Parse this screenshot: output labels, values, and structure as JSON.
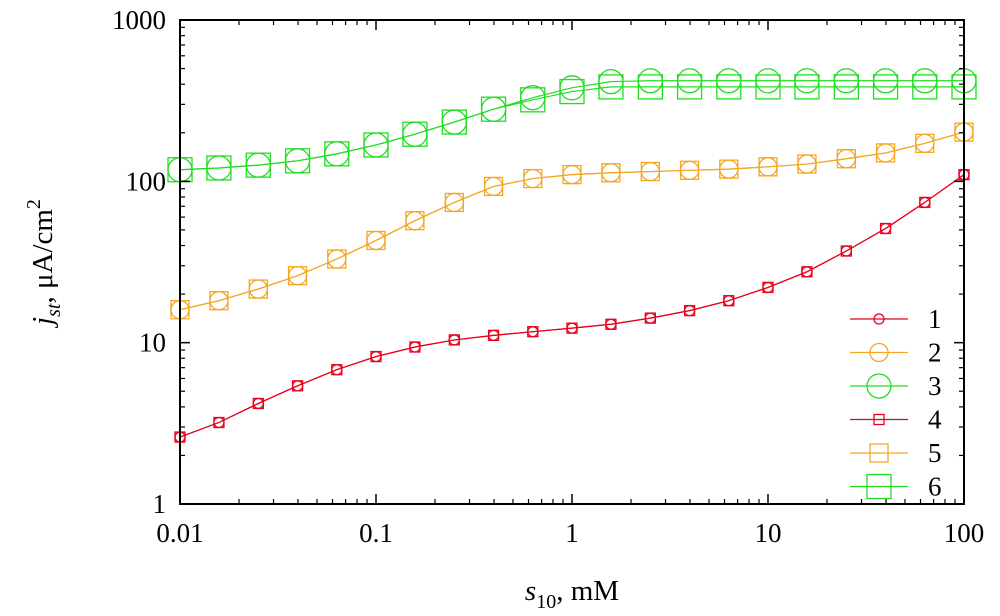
{
  "chart_data": {
    "type": "line",
    "title": "",
    "x_scale": "log",
    "y_scale": "log",
    "xlim": [
      0.01,
      100
    ],
    "ylim": [
      1,
      1000
    ],
    "xlabel": {
      "main": "s",
      "sub": "10",
      "rest": ", mM"
    },
    "ylabel": {
      "main": "j",
      "sub": "st",
      "rest": ", μA/cm",
      "sup": "2"
    },
    "x_ticks": [
      0.01,
      0.1,
      1,
      10,
      100
    ],
    "x_tick_labels": [
      "0.01",
      "0.1",
      "1",
      "10",
      "100"
    ],
    "y_ticks": [
      1,
      10,
      100,
      1000
    ],
    "y_tick_labels": [
      "1",
      "10",
      "100",
      "1000"
    ],
    "grid": false,
    "legend_position": "bottom-right",
    "colors": {
      "red": "#e8001c",
      "orange": "#f5a623",
      "green": "#22dd22"
    },
    "x": [
      0.01,
      0.0158,
      0.0251,
      0.0398,
      0.0631,
      0.1,
      0.158,
      0.251,
      0.398,
      0.631,
      1,
      1.58,
      2.51,
      3.98,
      6.31,
      10,
      15.8,
      25.1,
      39.8,
      63.1,
      100
    ],
    "series": [
      {
        "name": "1",
        "marker": "circle",
        "size": "small",
        "color": "#e8001c",
        "values": [
          2.6,
          3.2,
          4.2,
          5.4,
          6.8,
          8.2,
          9.4,
          10.4,
          11.1,
          11.7,
          12.3,
          13.0,
          14.2,
          15.8,
          18.2,
          22.0,
          27.5,
          37.0,
          51.0,
          74.0,
          110.0
        ]
      },
      {
        "name": "2",
        "marker": "circle",
        "size": "medium",
        "color": "#f5a623",
        "values": [
          16.0,
          18.2,
          21.5,
          26.0,
          33.0,
          43.0,
          57.0,
          74.0,
          93.0,
          104.0,
          110.0,
          113.0,
          115.0,
          117.0,
          119.0,
          123.0,
          128.0,
          138.0,
          150.0,
          172.0,
          202.0
        ]
      },
      {
        "name": "3",
        "marker": "circle",
        "size": "large",
        "color": "#22dd22",
        "values": [
          118.0,
          121.0,
          126.0,
          134.0,
          148.0,
          168.0,
          196.0,
          233.0,
          280.0,
          330.0,
          380.0,
          415.0,
          420.0,
          420.0,
          420.0,
          420.0,
          420.0,
          420.0,
          420.0,
          420.0,
          420.0
        ]
      },
      {
        "name": "4",
        "marker": "square",
        "size": "small",
        "color": "#e8001c",
        "values": [
          2.6,
          3.2,
          4.2,
          5.4,
          6.8,
          8.2,
          9.4,
          10.4,
          11.1,
          11.7,
          12.3,
          13.0,
          14.2,
          15.8,
          18.2,
          22.0,
          27.5,
          37.0,
          51.0,
          74.0,
          110.0
        ]
      },
      {
        "name": "5",
        "marker": "square",
        "size": "medium",
        "color": "#f5a623",
        "values": [
          16.0,
          18.2,
          21.5,
          26.0,
          33.0,
          43.0,
          57.0,
          74.0,
          93.0,
          104.0,
          110.0,
          113.0,
          115.0,
          117.0,
          119.0,
          123.0,
          128.0,
          138.0,
          150.0,
          172.0,
          202.0
        ]
      },
      {
        "name": "6",
        "marker": "square",
        "size": "large",
        "color": "#22dd22",
        "values": [
          118.0,
          121.0,
          126.0,
          134.0,
          148.0,
          168.0,
          196.0,
          233.0,
          280.0,
          320.0,
          360.0,
          385.0,
          385.0,
          385.0,
          385.0,
          385.0,
          385.0,
          385.0,
          385.0,
          385.0,
          385.0
        ]
      }
    ]
  }
}
